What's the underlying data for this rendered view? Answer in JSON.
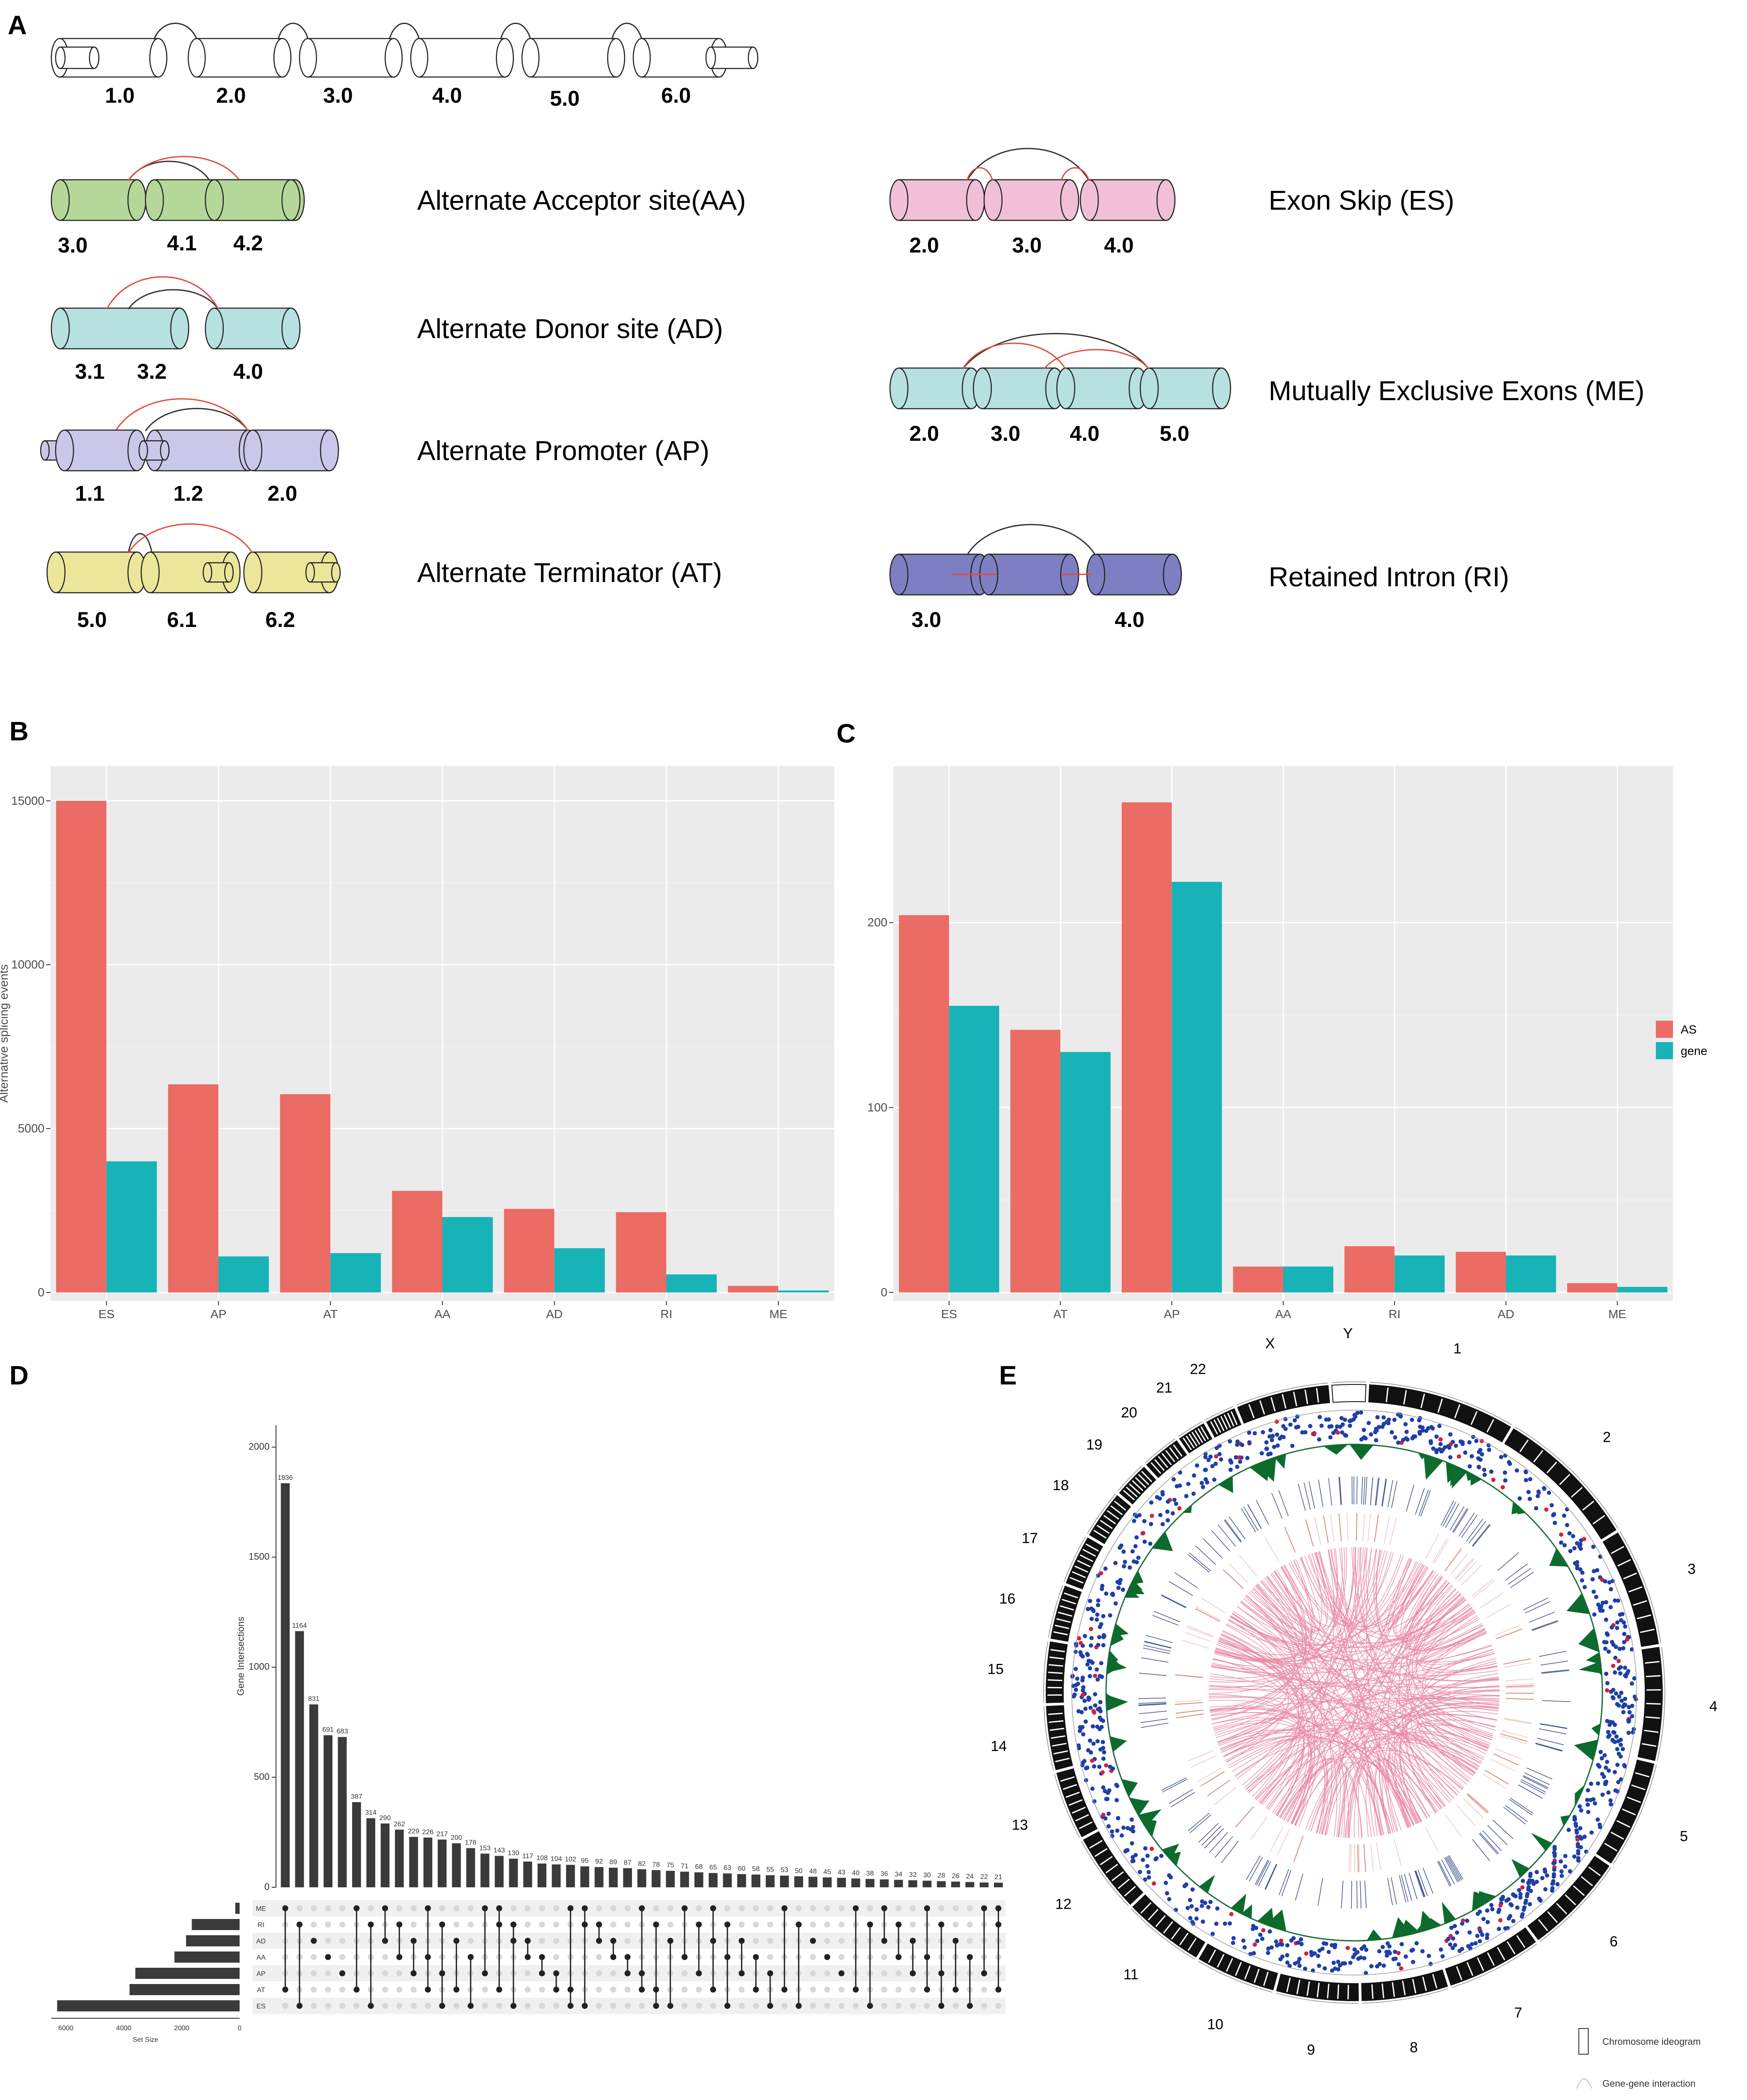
{
  "panel_a": {
    "letter": "A",
    "structure_numbers": [
      "1.0",
      "2.0",
      "3.0",
      "4.0",
      "5.0",
      "6.0"
    ],
    "events": [
      {
        "label": "Alternate Acceptor site(AA)",
        "numbers": [
          "3.0",
          "4.1",
          "4.2"
        ],
        "color": "#b5d89a"
      },
      {
        "label": "Alternate Donor site (AD)",
        "numbers": [
          "3.1",
          "3.2",
          "4.0"
        ],
        "color": "#b7e0e0"
      },
      {
        "label": "Alternate Promoter (AP)",
        "numbers": [
          "1.1",
          "1.2",
          "2.0"
        ],
        "color": "#c9c8e8"
      },
      {
        "label": "Alternate Terminator (AT)",
        "numbers": [
          "5.0",
          "6.1",
          "6.2"
        ],
        "color": "#ece69a"
      },
      {
        "label": "Exon Skip (ES)",
        "numbers": [
          "2.0",
          "3.0",
          "4.0"
        ],
        "color": "#f0c0d6"
      },
      {
        "label": "Mutually Exclusive Exons (ME)",
        "numbers": [
          "2.0",
          "3.0",
          "4.0",
          "5.0"
        ],
        "color": "#b7e0e0"
      },
      {
        "label": "Retained Intron (RI)",
        "numbers": [
          "3.0",
          "4.0"
        ],
        "color": "#7e7ec2"
      }
    ]
  },
  "chart_data": [
    {
      "panel": "B",
      "type": "bar",
      "ylabel": "Alternative splicing events",
      "categories": [
        "ES",
        "AP",
        "AT",
        "AA",
        "AD",
        "RI",
        "ME"
      ],
      "series": [
        {
          "name": "AS",
          "color": "#eb6b65",
          "values": [
            15000,
            6350,
            6050,
            3100,
            2550,
            2450,
            200
          ]
        },
        {
          "name": "gene",
          "color": "#17b3b6",
          "values": [
            4000,
            1100,
            1200,
            2300,
            1350,
            550,
            60
          ]
        }
      ],
      "yticks": [
        0,
        5000,
        10000,
        15000
      ],
      "ylim": [
        0,
        15800
      ]
    },
    {
      "panel": "C",
      "type": "bar",
      "categories": [
        "ES",
        "AT",
        "AP",
        "AA",
        "RI",
        "AD",
        "ME"
      ],
      "series": [
        {
          "name": "AS",
          "color": "#eb6b65",
          "values": [
            204,
            142,
            265,
            14,
            25,
            22,
            5
          ]
        },
        {
          "name": "gene",
          "color": "#17b3b6",
          "values": [
            155,
            130,
            222,
            14,
            20,
            20,
            3
          ]
        }
      ],
      "yticks": [
        0,
        100,
        200
      ],
      "ylim": [
        0,
        280
      ],
      "legend": [
        "AS",
        "gene"
      ]
    },
    {
      "panel": "D",
      "type": "bar",
      "ylabel": "Gene Intersections",
      "xlabel": "Set Size",
      "intersection_values": [
        1836,
        1164,
        831,
        691,
        683,
        387,
        314,
        290,
        262,
        229,
        226,
        217,
        200,
        178,
        153,
        143,
        130,
        117,
        108,
        104,
        102,
        95,
        92,
        89,
        87,
        82,
        78,
        75,
        71,
        68,
        65,
        63,
        60,
        58,
        55,
        53,
        50,
        48,
        45,
        43,
        40,
        38,
        36,
        34,
        32,
        30,
        28,
        26,
        24,
        22,
        21
      ],
      "yticks": [
        0,
        500,
        1000,
        1500,
        2000
      ],
      "ylim": [
        0,
        2100
      ],
      "sets": [
        "ME",
        "RI",
        "AD",
        "AA",
        "AP",
        "AT",
        "ES"
      ],
      "set_sizes": [
        150,
        1650,
        1850,
        2250,
        3600,
        3800,
        6300
      ],
      "set_ticks": [
        "6000",
        "4000",
        "2000",
        "0"
      ]
    }
  ],
  "panel_letters": {
    "b": "B",
    "c": "C",
    "d": "D",
    "e": "E"
  },
  "panel_e": {
    "chromosomes": [
      "1",
      "2",
      "3",
      "4",
      "5",
      "6",
      "7",
      "8",
      "9",
      "10",
      "11",
      "12",
      "13",
      "14",
      "15",
      "16",
      "17",
      "18",
      "19",
      "20",
      "21",
      "22",
      "X",
      "Y"
    ],
    "legend_ideogram": "Chromosome ideogram",
    "legend_interaction": "Gene-gene interaction"
  }
}
